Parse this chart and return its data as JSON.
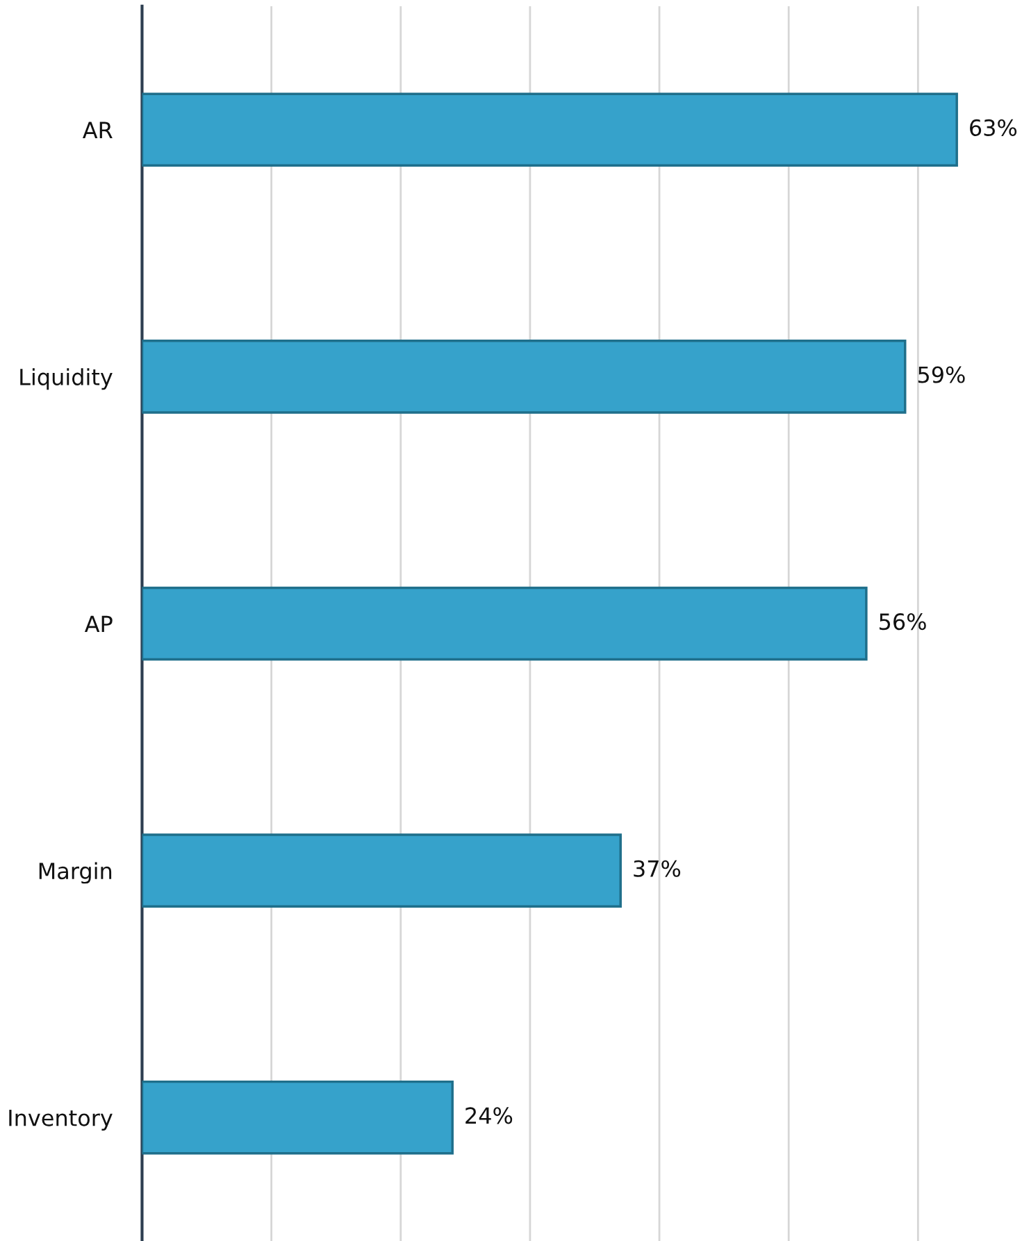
{
  "chart_data": {
    "type": "bar",
    "orientation": "horizontal",
    "categories": [
      "AR",
      "Liquidity",
      "AP",
      "Margin",
      "Inventory"
    ],
    "values": [
      63,
      59,
      56,
      37,
      24
    ],
    "value_labels": [
      "63%",
      "59%",
      "56%",
      "37%",
      "24%"
    ],
    "color": "#36a2cb",
    "xticks": [
      {
        "value": 0,
        "label": null
      },
      {
        "value": 10,
        "label": null
      },
      {
        "value": 20,
        "label": null
      },
      {
        "value": 30,
        "label": null
      },
      {
        "value": 40,
        "label": null
      },
      {
        "value": 50,
        "label": null
      },
      {
        "value": 60,
        "label": null
      }
    ],
    "tick_labels": "y",
    "grid": "x",
    "legend": false
  }
}
